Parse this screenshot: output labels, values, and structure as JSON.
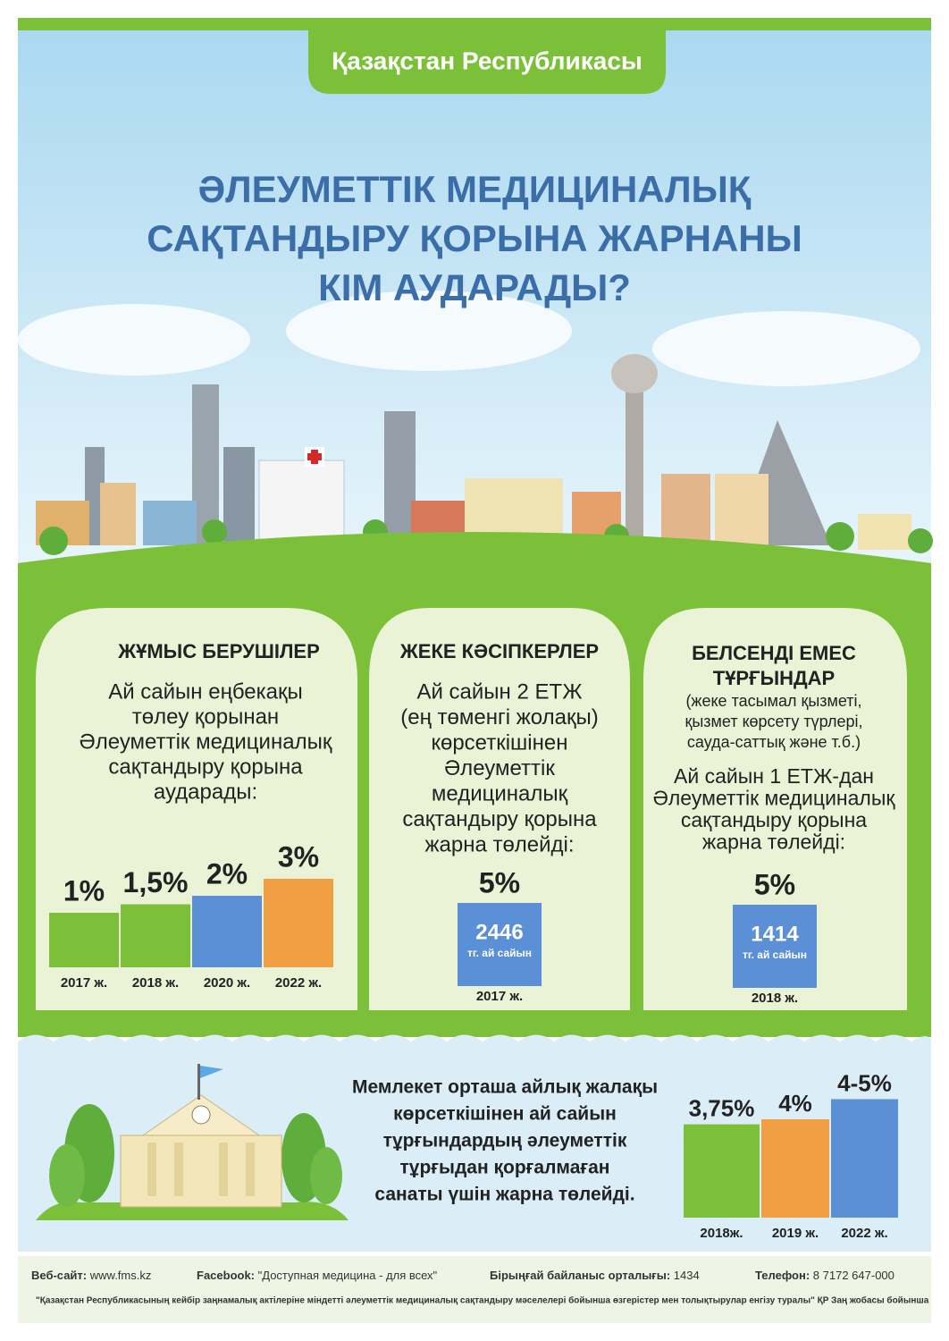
{
  "header": {
    "badge": "Қазақстан Республикасы",
    "title_lines": [
      "ӘЛЕУМЕТТІК МЕДИЦИНАЛЫҚ",
      "САҚТАНДЫРУ ҚОРЫНА ЖАРНАНЫ",
      "КІМ АУДАРАДЫ?"
    ]
  },
  "cards": [
    {
      "title_lines": [
        "ЖҰМЫС БЕРУШІЛЕР"
      ],
      "text_lines": [
        "Ай сайын еңбекақы",
        "төлеу қорынан",
        "Әлеуметтік медициналық",
        "сақтандыру қорына",
        "аударады:"
      ],
      "bars": {
        "categories": [
          "2017 ж.",
          "2018 ж.",
          "2020 ж.",
          "2022 ж."
        ],
        "values": [
          1,
          1.5,
          2,
          3
        ],
        "value_labels": [
          "1%",
          "1,5%",
          "2%",
          "3%"
        ],
        "colors": [
          "#7cc03a",
          "#7cc03a",
          "#5b8fd6",
          "#f0a043"
        ]
      }
    },
    {
      "title_lines": [
        "ЖЕКЕ КӘСІПКЕРЛЕР"
      ],
      "text_lines": [
        "Ай сайын 2 ЕТЖ",
        "(ең төменгі жолақы)",
        "көрсеткішінен",
        "Әлеуметтік",
        "медициналық",
        "сақтандыру қорына",
        "жарна төлейді:"
      ],
      "bar": {
        "value": 5,
        "value_label": "5%",
        "amount": 2446,
        "unit": "тг. ай сайын",
        "year": "2017 ж.",
        "color": "#5b8fd6"
      }
    },
    {
      "title_lines": [
        "БЕЛСЕНДІ ЕМЕС",
        "ТҰРҒЫНДАР"
      ],
      "note_lines": [
        "(жеке тасымал қызметі,",
        "қызмет көрсету түрлері,",
        "сауда-саттық  және  т.б.)"
      ],
      "text_lines": [
        "Ай сайын 1 ЕТЖ-дан",
        "Әлеуметтік медициналық",
        "сақтандыру қорына",
        "жарна төлейді:"
      ],
      "bar": {
        "value": 5,
        "value_label": "5%",
        "amount": 1414,
        "unit": "тг. ай сайын",
        "year": "2018 ж.",
        "color": "#5b8fd6"
      }
    }
  ],
  "state": {
    "text_lines": [
      "Мемлекет орташа айлық жалақы",
      "көрсеткішінен  ай сайын",
      "тұрғындардың  әлеуметтік",
      "тұрғыдан қорғалмаған",
      "санаты үшін жарна төлейді."
    ],
    "bars": {
      "categories": [
        "2018ж.",
        "2019 ж.",
        "2022 ж."
      ],
      "values": [
        3.75,
        4,
        {
          "low": 4,
          "high": 5
        }
      ],
      "value_labels": [
        "3,75%",
        "4%",
        "4-5%"
      ],
      "colors": [
        "#7cc03a",
        "#f0a043",
        "#5b8fd6"
      ]
    }
  },
  "footer": {
    "items": [
      {
        "label": "Веб-сайт:",
        "value": "www.fms.kz"
      },
      {
        "label": "Facebook:",
        "value": "\"Доступная медицина - для всех\""
      },
      {
        "label": "Бірыңғай байланыс орталығы:",
        "value": "1434"
      },
      {
        "label": "Телефон:",
        "value": "8 7172 647-000"
      }
    ],
    "note": "\"Қазақстан Республикасының кейбір заңнамалық актілеріне міндетті әлеуметтік медициналық сақтандыру мәселелері бойынша өзгерістер мен толықтырулар енгізу туралы\" ҚР Заң жобасы бойынша"
  }
}
